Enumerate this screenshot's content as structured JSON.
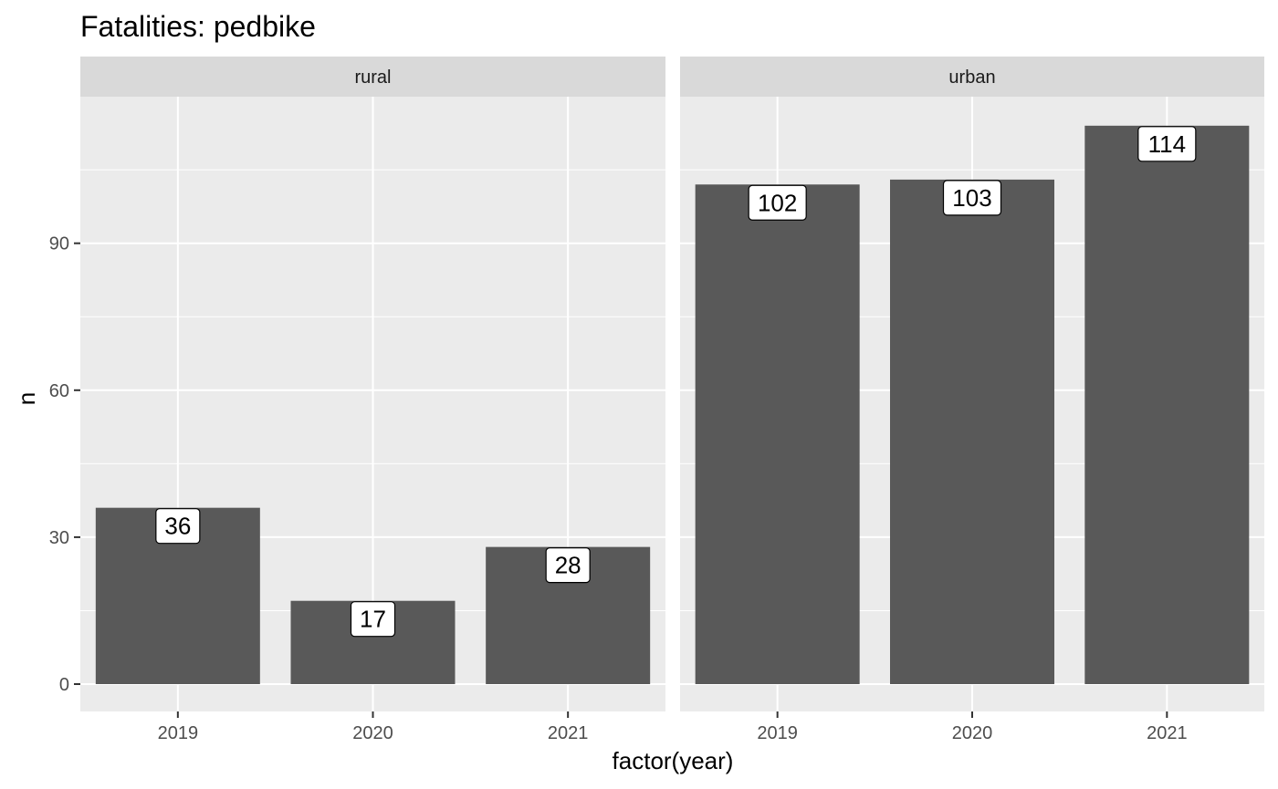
{
  "chart_data": {
    "type": "bar",
    "title": "Fatalities: pedbike",
    "xlabel": "factor(year)",
    "ylabel": "n",
    "categories": [
      "2019",
      "2020",
      "2021"
    ],
    "ylim": [
      0,
      120
    ],
    "y_ticks": [
      0,
      30,
      60,
      90
    ],
    "grid": true,
    "facets": [
      {
        "name": "rural",
        "values": [
          36,
          17,
          28
        ]
      },
      {
        "name": "urban",
        "values": [
          102,
          103,
          114
        ]
      }
    ],
    "colors": {
      "bar": "#595959",
      "panel": "#ebebeb",
      "strip": "#d9d9d9",
      "grid": "#ffffff"
    }
  }
}
